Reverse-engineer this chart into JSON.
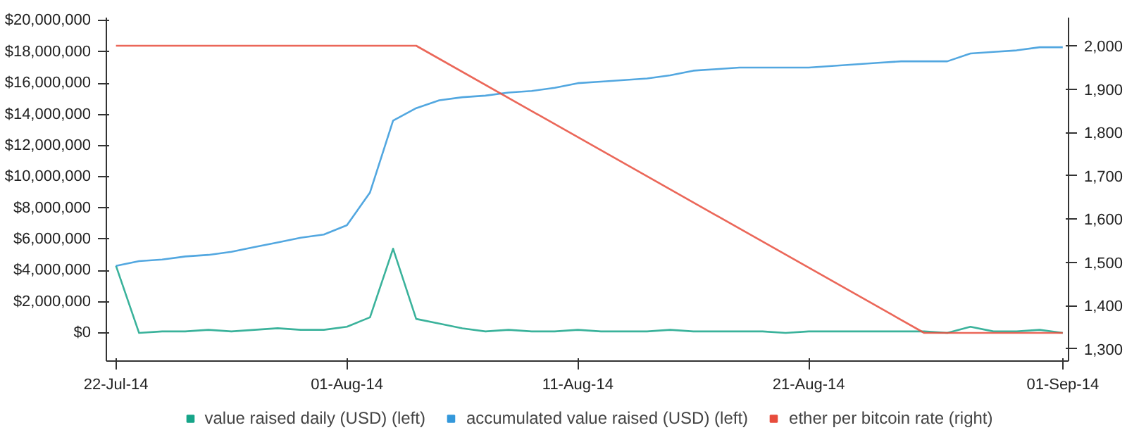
{
  "chart_data": {
    "type": "line",
    "x": [
      "2014-07-22",
      "2014-07-23",
      "2014-07-24",
      "2014-07-25",
      "2014-07-26",
      "2014-07-27",
      "2014-07-28",
      "2014-07-29",
      "2014-07-30",
      "2014-07-31",
      "2014-08-01",
      "2014-08-02",
      "2014-08-03",
      "2014-08-04",
      "2014-08-05",
      "2014-08-06",
      "2014-08-07",
      "2014-08-08",
      "2014-08-09",
      "2014-08-10",
      "2014-08-11",
      "2014-08-12",
      "2014-08-13",
      "2014-08-14",
      "2014-08-15",
      "2014-08-16",
      "2014-08-17",
      "2014-08-18",
      "2014-08-19",
      "2014-08-20",
      "2014-08-21",
      "2014-08-22",
      "2014-08-23",
      "2014-08-24",
      "2014-08-25",
      "2014-08-26",
      "2014-08-27",
      "2014-08-28",
      "2014-08-29",
      "2014-08-30",
      "2014-08-31",
      "2014-09-01"
    ],
    "series": [
      {
        "name": "value raised daily (USD) (left)",
        "color": "#17a589",
        "axis": "y",
        "values": [
          4300000,
          0,
          100000,
          100000,
          200000,
          100000,
          200000,
          300000,
          200000,
          200000,
          400000,
          1000000,
          5400000,
          900000,
          600000,
          300000,
          100000,
          200000,
          100000,
          100000,
          200000,
          100000,
          100000,
          100000,
          200000,
          100000,
          100000,
          100000,
          100000,
          0,
          100000,
          100000,
          100000,
          100000,
          100000,
          100000,
          0,
          400000,
          100000,
          100000,
          200000,
          0
        ]
      },
      {
        "name": "accumulated value raised (USD) (left)",
        "color": "#3498db",
        "axis": "y",
        "values": [
          4300000,
          4600000,
          4700000,
          4900000,
          5000000,
          5200000,
          5500000,
          5800000,
          6100000,
          6300000,
          6900000,
          9000000,
          13600000,
          14400000,
          14900000,
          15100000,
          15200000,
          15400000,
          15500000,
          15700000,
          16000000,
          16100000,
          16200000,
          16300000,
          16500000,
          16800000,
          16900000,
          17000000,
          17000000,
          17000000,
          17000000,
          17100000,
          17200000,
          17300000,
          17400000,
          17400000,
          17400000,
          17900000,
          18000000,
          18100000,
          18300000,
          18300000
        ]
      },
      {
        "name": "ether per bitcoin rate (right)",
        "color": "#e74c3c",
        "axis": "y2",
        "x": [
          "2014-07-22",
          "2014-08-04",
          "2014-08-26",
          "2014-09-01"
        ],
        "values": [
          2000,
          2000,
          1337,
          1337
        ]
      }
    ],
    "xlim": [
      "2014-07-21T14:00",
      "2014-09-01T06:00"
    ],
    "xticks": [
      {
        "value": "2014-07-22",
        "label": "22-Jul-14"
      },
      {
        "value": "2014-08-01",
        "label": "01-Aug-14"
      },
      {
        "value": "2014-08-11",
        "label": "11-Aug-14"
      },
      {
        "value": "2014-08-21",
        "label": "21-Aug-14"
      },
      {
        "value": "2014-09-01",
        "label": "01-Sep-14"
      }
    ],
    "ylim": [
      -1800000,
      20200000
    ],
    "yticks": [
      {
        "value": 0,
        "label": "$0"
      },
      {
        "value": 2000000,
        "label": "$2,000,000"
      },
      {
        "value": 4000000,
        "label": "$4,000,000"
      },
      {
        "value": 6000000,
        "label": "$6,000,000"
      },
      {
        "value": 8000000,
        "label": "$8,000,000"
      },
      {
        "value": 10000000,
        "label": "$10,000,000"
      },
      {
        "value": 12000000,
        "label": "$12,000,000"
      },
      {
        "value": 14000000,
        "label": "$14,000,000"
      },
      {
        "value": 16000000,
        "label": "$16,000,000"
      },
      {
        "value": 18000000,
        "label": "$18,000,000"
      },
      {
        "value": 20000000,
        "label": "$20,000,000"
      }
    ],
    "y2lim": [
      1272,
      2065
    ],
    "y2ticks": [
      {
        "value": 1300,
        "label": "1,300"
      },
      {
        "value": 1400,
        "label": "1,400"
      },
      {
        "value": 1500,
        "label": "1,500"
      },
      {
        "value": 1600,
        "label": "1,600"
      },
      {
        "value": 1700,
        "label": "1,700"
      },
      {
        "value": 1800,
        "label": "1,800"
      },
      {
        "value": 1900,
        "label": "1,900"
      },
      {
        "value": 2000,
        "label": "2,000"
      }
    ],
    "grid": false,
    "legend": "bottom",
    "marker": "none",
    "line_style": "solid"
  }
}
